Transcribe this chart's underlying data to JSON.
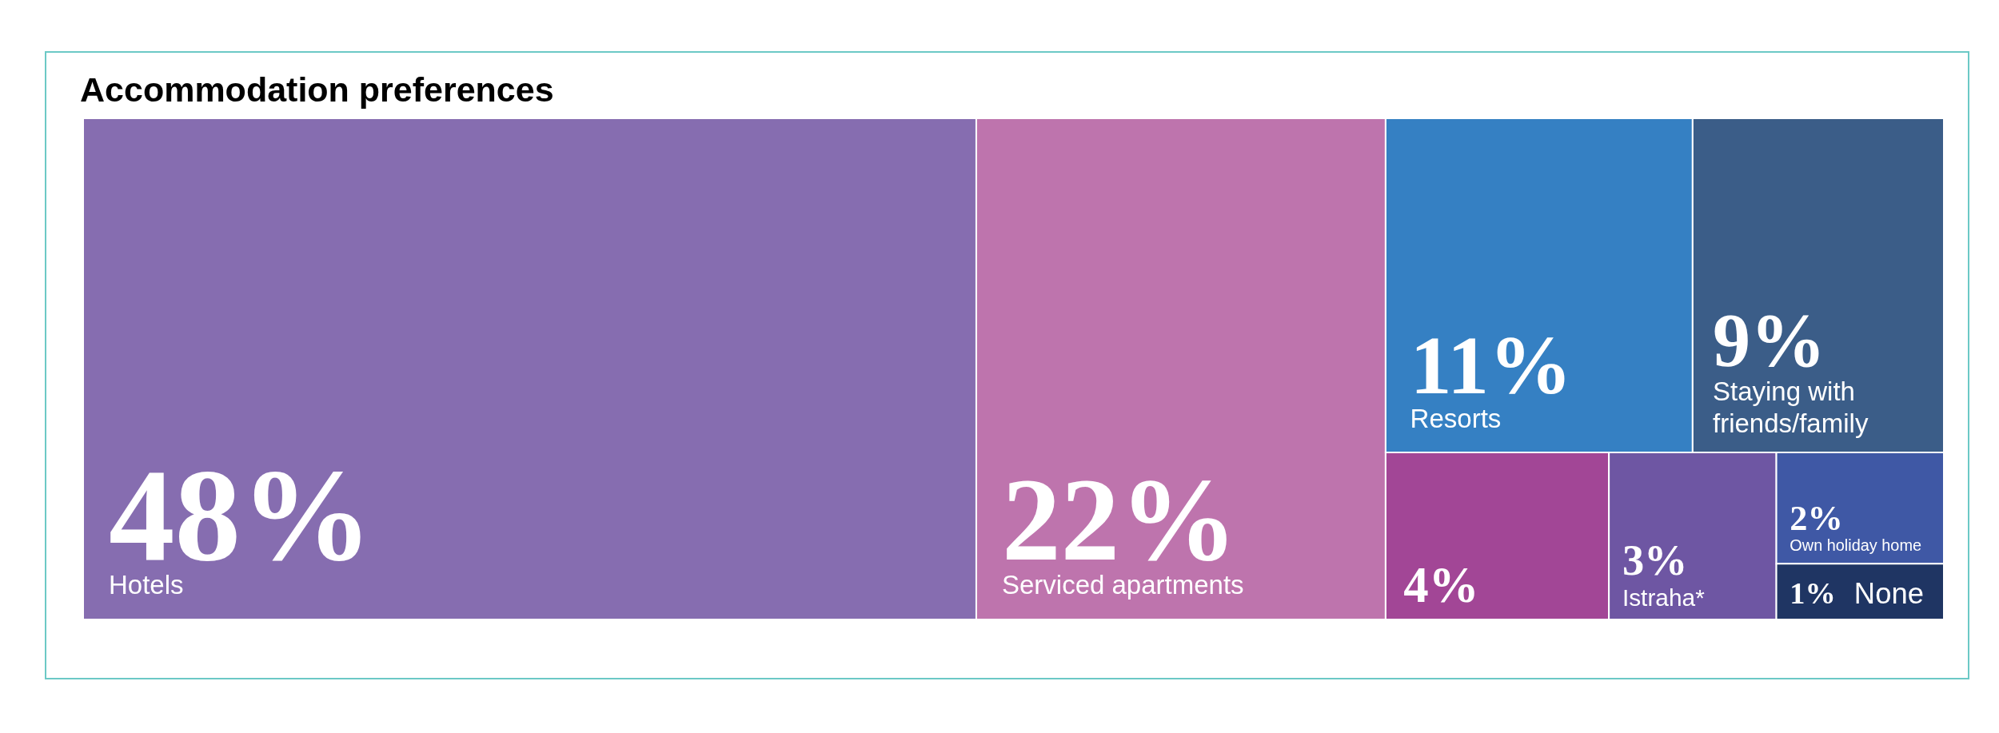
{
  "chart_data": {
    "type": "other",
    "title": "Accommodation preferences",
    "categories": [
      "Hotels",
      "Serviced apartments",
      "Resorts",
      "Staying with friends/family",
      null,
      "Istraha*",
      "Own holiday home",
      "None"
    ],
    "values": [
      48,
      22,
      11,
      9,
      4,
      3,
      2,
      1
    ],
    "value_labels": [
      "48%",
      "22%",
      "11%",
      "9%",
      "4%",
      "3%",
      "2%",
      "1%"
    ],
    "colors": [
      "#866db0",
      "#be74ad",
      "#3580c3",
      "#3b5d88",
      "#a24696",
      "#6e56a3",
      "#3f58a5",
      "#1f3563"
    ]
  }
}
